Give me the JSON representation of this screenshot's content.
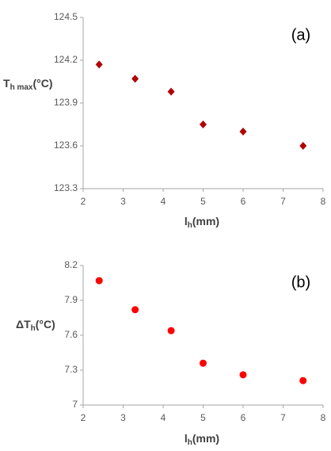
{
  "chart_data": [
    {
      "type": "scatter",
      "annotation": "(a)",
      "xlabel": {
        "main": "l",
        "sub": "h",
        "unit": "(mm)"
      },
      "ylabel": {
        "main": "T",
        "sub": "h max",
        "unit": "(°C)"
      },
      "x": [
        2.4,
        3.3,
        4.2,
        5,
        6,
        7.5
      ],
      "series": [
        {
          "color": "#b00000",
          "marker": "diamond",
          "values": [
            124.17,
            124.07,
            123.98,
            123.75,
            123.7,
            123.6
          ]
        }
      ],
      "xlim": [
        2,
        8
      ],
      "xticks": [
        2,
        3,
        4,
        5,
        6,
        7,
        8
      ],
      "ylim": [
        123.3,
        124.5
      ],
      "yticks": [
        123.3,
        123.6,
        123.9,
        124.2,
        124.5
      ]
    },
    {
      "type": "scatter",
      "annotation": "(b)",
      "xlabel": {
        "main": "l",
        "sub": "h",
        "unit": "(mm)"
      },
      "ylabel": {
        "main": "ΔT",
        "sub": "h",
        "unit": "(°C)"
      },
      "x": [
        2.4,
        3.3,
        4.2,
        5,
        6,
        7.5
      ],
      "series": [
        {
          "color": "#ff0000",
          "marker": "circle",
          "values": [
            8.07,
            7.82,
            7.64,
            7.36,
            7.26,
            7.21
          ]
        }
      ],
      "xlim": [
        2,
        8
      ],
      "xticks": [
        2,
        3,
        4,
        5,
        6,
        7,
        8
      ],
      "ylim": [
        7,
        8.2
      ],
      "yticks": [
        7,
        7.3,
        7.6,
        7.9,
        8.2
      ]
    }
  ]
}
